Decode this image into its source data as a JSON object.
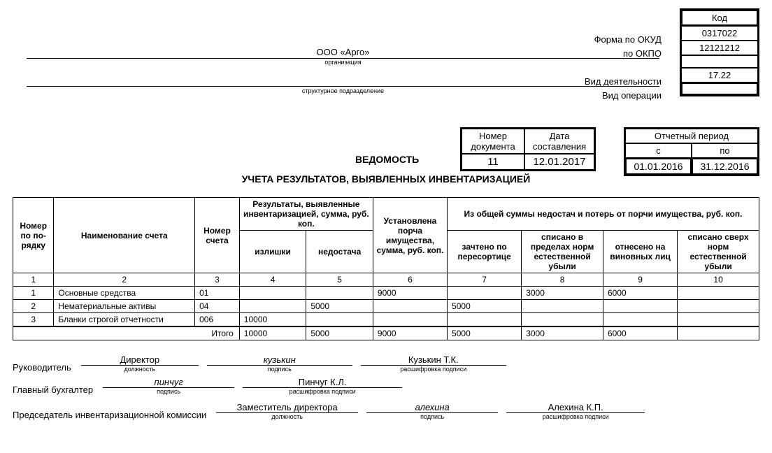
{
  "header": {
    "code_title": "Код",
    "okud_label": "Форма по ОКУД",
    "okud": "0317022",
    "okpo_label": "по ОКПО",
    "okpo": "12121212",
    "activity_label": "Вид деятельности",
    "activity": "17.22",
    "operation_label": "Вид операции",
    "operation": "",
    "org_name": "ООО «Арго»",
    "org_sub": "организация",
    "org_sub2": "структурное подразделение"
  },
  "meta": {
    "doc_num_hdr": "Номер документа",
    "doc_date_hdr": "Дата составления",
    "doc_num": "11",
    "doc_date": "12.01.2017",
    "period_hdr": "Отчетный период",
    "period_from_hdr": "с",
    "period_to_hdr": "по",
    "period_from": "01.01.2016",
    "period_to": "31.12.2016",
    "title1": "ВЕДОМОСТЬ",
    "title2": "УЧЕТА РЕЗУЛЬТАТОВ, ВЫЯВЛЕННЫХ ИНВЕНТАРИЗАЦИЕЙ"
  },
  "table": {
    "headers": {
      "c1": "Номер по по-рядку",
      "c2": "Наименование счета",
      "c3": "Номер счета",
      "g1": "Результаты, выявленные инвентаризацией, сумма, руб. коп.",
      "c4": "излишки",
      "c5": "недостача",
      "c6": "Установлена порча имущества, сумма, руб. коп.",
      "g2": "Из общей суммы недостач и потерь от порчи имущества, руб. коп.",
      "c7": "зачтено по пересортице",
      "c8": "списано в пределах норм естественной убыли",
      "c9": "отнесено на виновных лиц",
      "c10": "списано сверх норм естественной убыли"
    },
    "numrow": [
      "1",
      "2",
      "3",
      "4",
      "5",
      "6",
      "7",
      "8",
      "9",
      "10"
    ],
    "rows": [
      {
        "n": "1",
        "name": "Основные средства",
        "acct": "01",
        "c4": "",
        "c5": "",
        "c6": "9000",
        "c7": "",
        "c8": "3000",
        "c9": "6000",
        "c10": ""
      },
      {
        "n": "2",
        "name": "Нематериальные активы",
        "acct": "04",
        "c4": "",
        "c5": "5000",
        "c6": "",
        "c7": "5000",
        "c8": "",
        "c9": "",
        "c10": ""
      },
      {
        "n": "3",
        "name": "Бланки строгой отчетности",
        "acct": "006",
        "c4": "10000",
        "c5": "",
        "c6": "",
        "c7": "",
        "c8": "",
        "c9": "",
        "c10": ""
      }
    ],
    "total_label": "Итого",
    "total": {
      "c4": "10000",
      "c5": "5000",
      "c6": "9000",
      "c7": "5000",
      "c8": "3000",
      "c9": "6000",
      "c10": ""
    }
  },
  "sign": {
    "ruk_label": "Руководитель",
    "ruk_pos": "Директор",
    "ruk_sign": "кузькин",
    "ruk_name": "Кузькин Т.К.",
    "glbuh_label": "Главный бухгалтер",
    "glbuh_sign": "пинчуг",
    "glbuh_name": "Пинчуг К.Л.",
    "pred_label": "Председатель инвентаризационной комиссии",
    "pred_pos": "Заместитель директора",
    "pred_sign": "алехина",
    "pred_name": "Алехина К.П.",
    "sub_pos": "должность",
    "sub_sign": "подпись",
    "sub_name": "расшифровка подписи"
  }
}
